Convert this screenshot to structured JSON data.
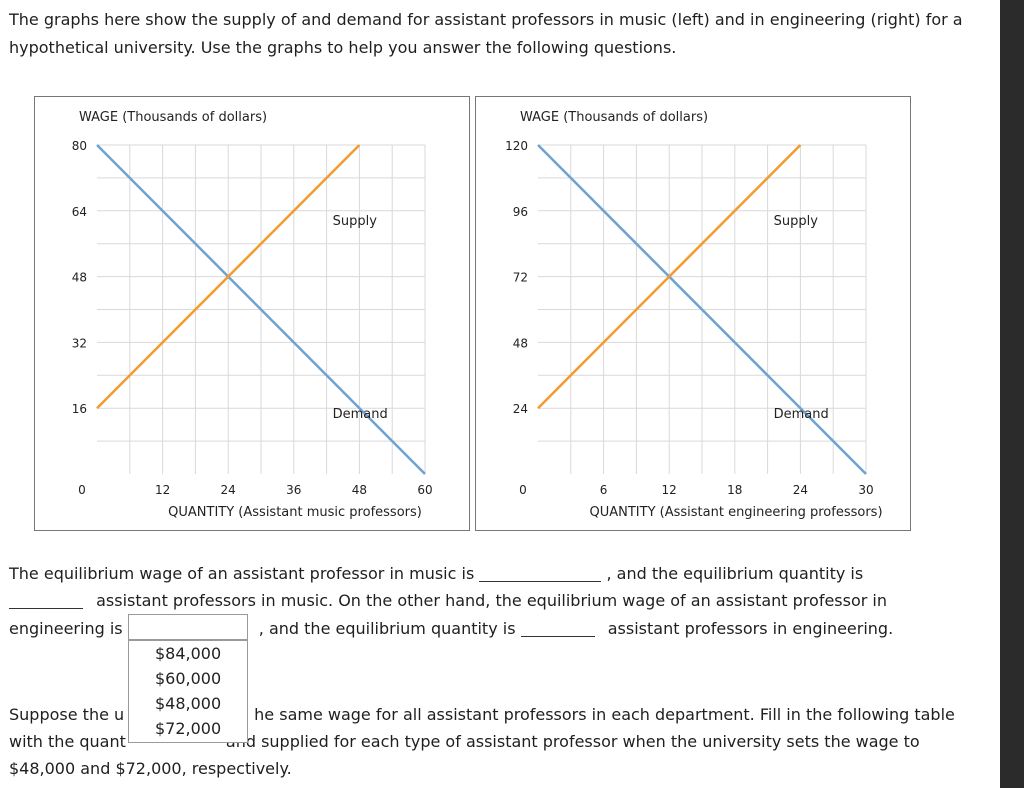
{
  "intro_text": "The graphs here show the supply of and demand for assistant professors in music (left) and in engineering (right) for a hypothetical university. Use the graphs to help you answer the following questions.",
  "chart_data": [
    {
      "type": "line",
      "name": "music",
      "ylabel": "WAGE (Thousands of dollars)",
      "xlabel": "QUANTITY (Assistant music professors)",
      "xlim": [
        0,
        60
      ],
      "ylim": [
        0,
        80
      ],
      "x_ticks": [
        "0",
        "12",
        "24",
        "36",
        "48",
        "60"
      ],
      "y_ticks": [
        "16",
        "32",
        "48",
        "64",
        "80"
      ],
      "series": [
        {
          "name": "Demand",
          "label": "Demand",
          "color": "#6ea2d0",
          "points": [
            [
              0,
              80
            ],
            [
              60,
              0
            ]
          ]
        },
        {
          "name": "Supply",
          "label": "Supply",
          "color": "#f59a2f",
          "points": [
            [
              0,
              16
            ],
            [
              48,
              80
            ]
          ]
        }
      ]
    },
    {
      "type": "line",
      "name": "engineering",
      "ylabel": "WAGE (Thousands of dollars)",
      "xlabel": "QUANTITY (Assistant engineering professors)",
      "xlim": [
        0,
        30
      ],
      "ylim": [
        0,
        120
      ],
      "x_ticks": [
        "0",
        "6",
        "12",
        "18",
        "24",
        "30"
      ],
      "y_ticks": [
        "24",
        "48",
        "72",
        "96",
        "120"
      ],
      "series": [
        {
          "name": "Demand",
          "label": "Demand",
          "color": "#6ea2d0",
          "points": [
            [
              0,
              120
            ],
            [
              30,
              0
            ]
          ]
        },
        {
          "name": "Supply",
          "label": "Supply",
          "color": "#f59a2f",
          "points": [
            [
              0,
              24
            ],
            [
              24,
              120
            ]
          ]
        }
      ]
    }
  ],
  "question": {
    "part1": "The equilibrium wage of an assistant professor in music is",
    "part2": ", and the equilibrium quantity is",
    "part3": "assistant professors in music. On the other hand, the equilibrium wage of an assistant professor in",
    "part4": "engineering is",
    "part5": ", and the equilibrium quantity is",
    "part6": "assistant professors in engineering."
  },
  "dropdown_options": [
    "$84,000",
    "$60,000",
    "$48,000",
    "$72,000"
  ],
  "second_para": {
    "start": "Suppose the u",
    "mid": "he same wage for all assistant professors in each department. Fill in the following table",
    "line2_start": "with the quant",
    "line2_end": "and supplied for each type of assistant professor when the university sets the wage to",
    "line3": "$48,000 and $72,000, respectively."
  }
}
